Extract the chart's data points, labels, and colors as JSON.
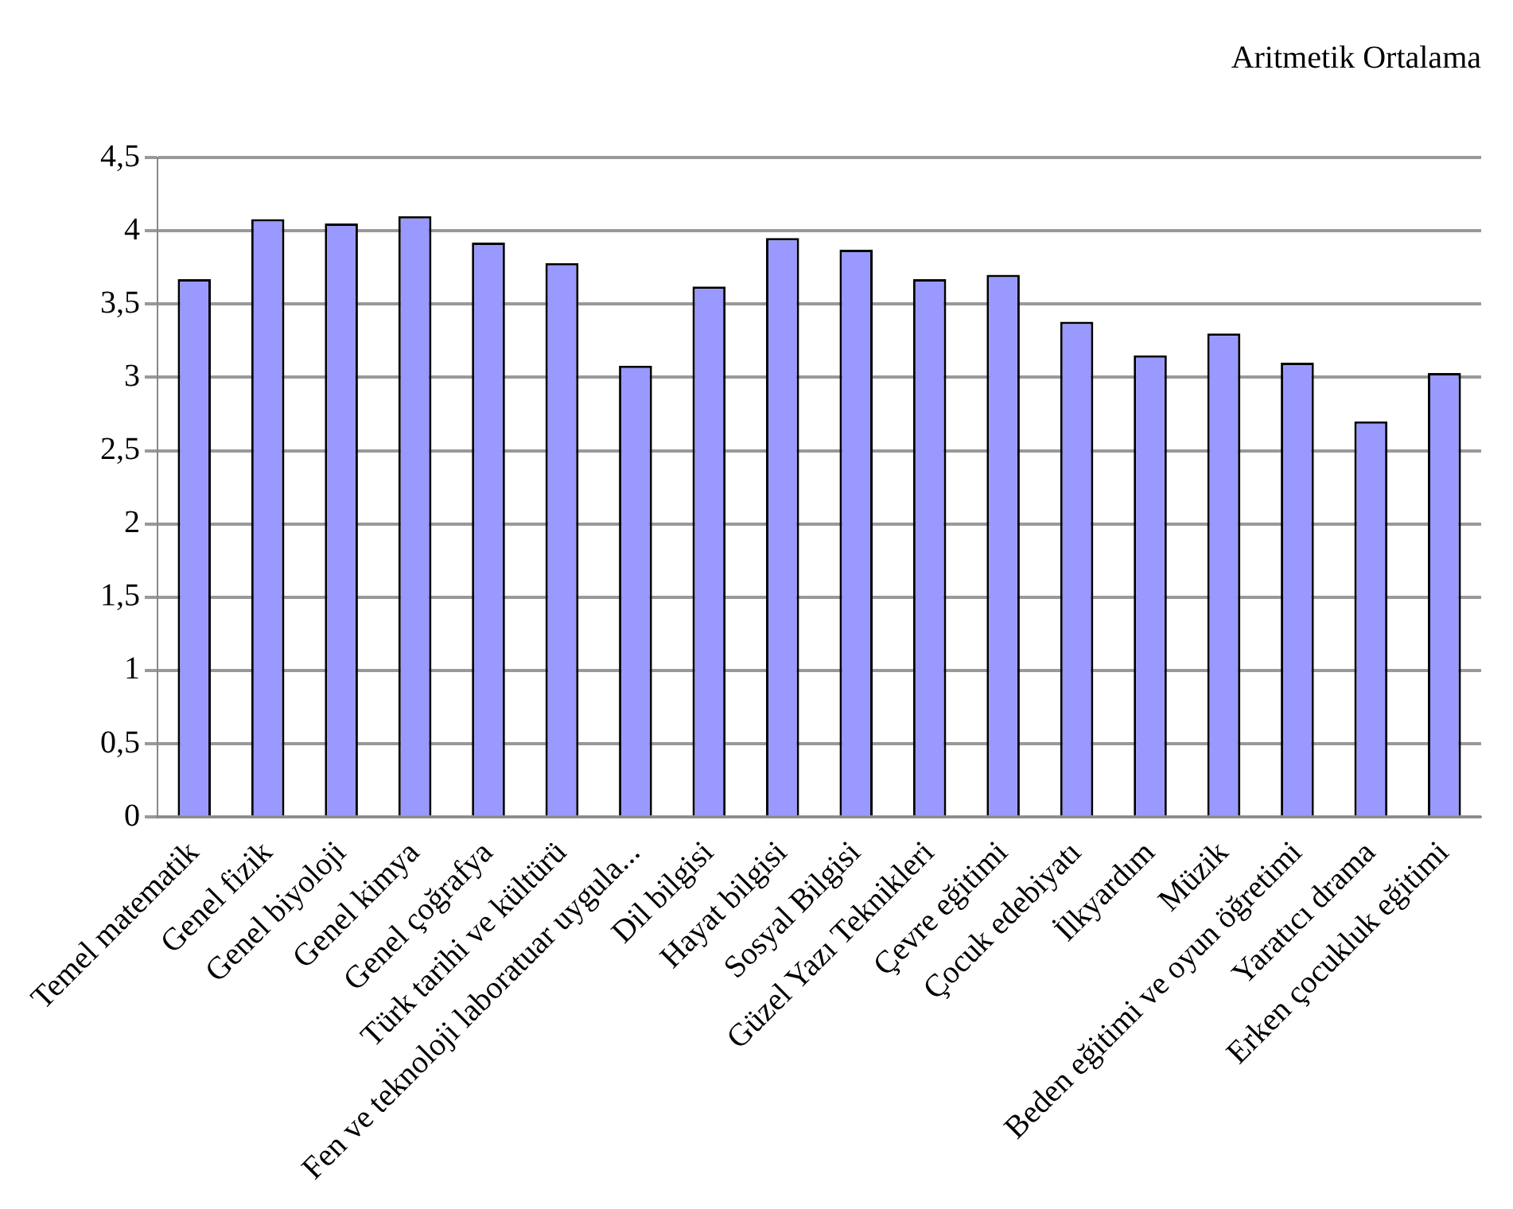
{
  "chart_data": {
    "type": "bar",
    "title": "Aritmetik Ortalama",
    "categories": [
      "Temel matematik",
      "Genel fizik",
      "Genel biyoloji",
      "Genel kimya",
      "Genel çoğrafya",
      "Türk tarihi ve kültürü",
      "Fen ve teknoloji laboratuar uygula...",
      "Dil bilgisi",
      "Hayat bilgisi",
      "Sosyal Bilgisi",
      "Güzel Yazı Teknikleri",
      "Çevre eğitimi",
      "Çocuk edebiyatı",
      "İlkyardım",
      "Müzik",
      "Beden eğitimi ve oyun öğretimi",
      "Yaratıcı drama",
      "Erken çocukluk eğitimi"
    ],
    "values": [
      3.67,
      4.08,
      4.05,
      4.1,
      3.92,
      3.78,
      3.08,
      3.62,
      3.95,
      3.87,
      3.67,
      3.7,
      3.38,
      3.15,
      3.3,
      3.1,
      2.7,
      3.03
    ],
    "color": "#9999ff",
    "ylim": [
      0,
      4.5
    ],
    "yticks": [
      0,
      {
        "value": 0.5,
        "label": "0,5"
      },
      1,
      {
        "value": 1.5,
        "label": "1,5"
      },
      2,
      {
        "value": 2.5,
        "label": "2,5"
      },
      3,
      {
        "value": 3.5,
        "label": "3,5"
      },
      4,
      {
        "value": 4.5,
        "label": "4,5"
      }
    ],
    "grid": "y",
    "legend": false
  }
}
